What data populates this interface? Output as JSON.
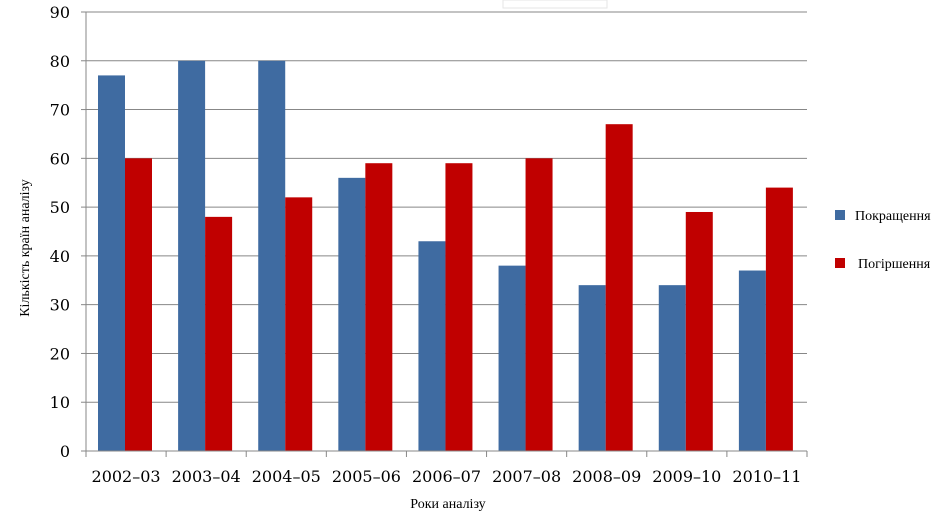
{
  "chart_data": {
    "type": "bar",
    "categories": [
      "2002–03",
      "2003–04",
      "2004–05",
      "2005–06",
      "2006–07",
      "2007–08",
      "2008–09",
      "2009–10",
      "2010–11"
    ],
    "series": [
      {
        "name": "Покращення",
        "color": "#3f6ba1",
        "values": [
          77,
          80,
          80,
          56,
          43,
          38,
          34,
          34,
          37
        ]
      },
      {
        "name": "Погіршення",
        "color": "#c00000",
        "values": [
          60,
          48,
          52,
          59,
          59,
          60,
          67,
          49,
          54
        ]
      }
    ],
    "xlabel": "Роки аналізу",
    "ylabel": "Кількість країн аналізу",
    "ylim": [
      0,
      90
    ],
    "yticks": [
      "0",
      "10",
      "20",
      "30",
      "40",
      "50",
      "60",
      "70",
      "80",
      "90"
    ],
    "grid": true,
    "legend_position": "right"
  }
}
